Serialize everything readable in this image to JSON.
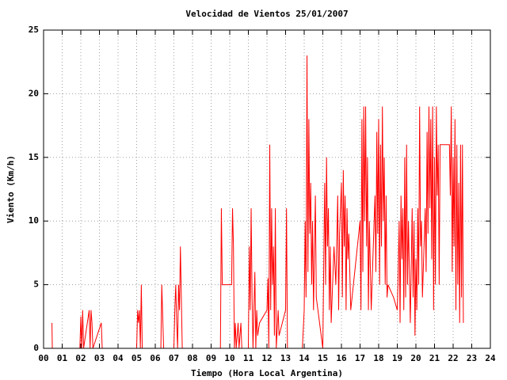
{
  "chart_data": {
    "type": "line",
    "title": "Velocidad de Vientos 25/01/2007",
    "xlabel": "Tiempo (Hora Local Argentina)",
    "ylabel": "Viento (Km/h)",
    "xlim": [
      0,
      24
    ],
    "ylim": [
      0,
      25
    ],
    "xticks": [
      {
        "value": 0,
        "label": "00"
      },
      {
        "value": 1,
        "label": "01"
      },
      {
        "value": 2,
        "label": "02"
      },
      {
        "value": 3,
        "label": "03"
      },
      {
        "value": 4,
        "label": "04"
      },
      {
        "value": 5,
        "label": "05"
      },
      {
        "value": 6,
        "label": "06"
      },
      {
        "value": 7,
        "label": "07"
      },
      {
        "value": 8,
        "label": "08"
      },
      {
        "value": 9,
        "label": "09"
      },
      10,
      11,
      12,
      13,
      14,
      15,
      16,
      17,
      18,
      19,
      20,
      21,
      22,
      23,
      24
    ],
    "yticks": [
      0,
      5,
      10,
      15,
      20,
      25
    ],
    "grid": true,
    "x": [
      0.45,
      0.47,
      1.95,
      2.0,
      2.05,
      2.1,
      2.15,
      2.45,
      2.5,
      2.55,
      2.6,
      2.65,
      3.1,
      3.15,
      5.0,
      5.05,
      5.1,
      5.15,
      5.2,
      5.25,
      5.3,
      6.3,
      6.35,
      6.4,
      6.45,
      7.0,
      7.05,
      7.1,
      7.15,
      7.2,
      7.25,
      7.3,
      7.35,
      7.4,
      7.45,
      9.5,
      9.55,
      9.6,
      10.1,
      10.15,
      10.2,
      10.25,
      10.3,
      10.35,
      10.45,
      10.5,
      10.6,
      10.65,
      11.0,
      11.05,
      11.1,
      11.15,
      11.2,
      11.25,
      11.35,
      11.4,
      11.45,
      11.5,
      11.6,
      12.0,
      12.05,
      12.1,
      12.15,
      12.2,
      12.25,
      12.3,
      12.35,
      12.4,
      12.45,
      12.5,
      12.6,
      12.65,
      13.0,
      13.05,
      13.1,
      13.9,
      14.0,
      14.05,
      14.1,
      14.15,
      14.2,
      14.25,
      14.3,
      14.35,
      14.4,
      14.45,
      14.5,
      14.6,
      14.65,
      15.0,
      15.1,
      15.15,
      15.2,
      15.25,
      15.3,
      15.35,
      15.4,
      15.45,
      15.6,
      15.7,
      15.8,
      15.85,
      15.9,
      16.0,
      16.05,
      16.1,
      16.15,
      16.2,
      16.25,
      16.3,
      16.35,
      16.4,
      16.5,
      17.0,
      17.05,
      17.1,
      17.15,
      17.2,
      17.25,
      17.3,
      17.35,
      17.4,
      17.45,
      17.5,
      17.6,
      17.8,
      17.85,
      17.9,
      17.95,
      18.0,
      18.05,
      18.1,
      18.15,
      18.2,
      18.25,
      18.3,
      18.35,
      18.4,
      18.45,
      18.5,
      18.8,
      19.0,
      19.05,
      19.1,
      19.15,
      19.2,
      19.25,
      19.3,
      19.35,
      19.4,
      19.45,
      19.5,
      19.55,
      19.6,
      19.7,
      19.8,
      19.85,
      19.9,
      19.95,
      20.0,
      20.05,
      20.1,
      20.15,
      20.2,
      20.25,
      20.3,
      20.35,
      20.5,
      20.55,
      20.6,
      20.65,
      20.7,
      20.75,
      20.8,
      20.85,
      20.9,
      20.95,
      21.0,
      21.05,
      21.1,
      21.15,
      21.2,
      21.25,
      21.3,
      21.8,
      21.85,
      21.9,
      21.95,
      22.0,
      22.05,
      22.1,
      22.15,
      22.2,
      22.25,
      22.3,
      22.35,
      22.4,
      22.45,
      22.5,
      22.55
    ],
    "series": [
      {
        "color": "#ff0000",
        "values": [
          2,
          0,
          0,
          2.5,
          0,
          3,
          0,
          3,
          0,
          3,
          2,
          0,
          2,
          0,
          0,
          3,
          2,
          3,
          0,
          5,
          0,
          0,
          5,
          2.5,
          0,
          0,
          3,
          5,
          2,
          0,
          5,
          3,
          8,
          4,
          0,
          0,
          11,
          5,
          5,
          11,
          8,
          0,
          2,
          0,
          2,
          0,
          2,
          0,
          0,
          8,
          3,
          11,
          4,
          0,
          6,
          0,
          3,
          1,
          2,
          3,
          5.5,
          0,
          16,
          3,
          11,
          5,
          8,
          1,
          11,
          0,
          3,
          1,
          3,
          11,
          0,
          0,
          3,
          10,
          4,
          23,
          6,
          18,
          9,
          13,
          5,
          10,
          3,
          12,
          4,
          0,
          13,
          5,
          15,
          8,
          11,
          3,
          8,
          2,
          8,
          5,
          12,
          3,
          9,
          13,
          4,
          14,
          8,
          12,
          3,
          11,
          7,
          9,
          3,
          10,
          3,
          18,
          6,
          19,
          10,
          19,
          8,
          15,
          3,
          10,
          3,
          12,
          6,
          17,
          9,
          18,
          5,
          16,
          8,
          19,
          10,
          15,
          5,
          12,
          4,
          5,
          4,
          3,
          6,
          10,
          2,
          12,
          7,
          11,
          3,
          15,
          4,
          16,
          5,
          10,
          2,
          11,
          4,
          10,
          1,
          7,
          3,
          11,
          5,
          19,
          8,
          10,
          4,
          11,
          6,
          17,
          9,
          19,
          11,
          18,
          7,
          19,
          3,
          15,
          5,
          19,
          12,
          16,
          5,
          16,
          16,
          12,
          19,
          6,
          15,
          8,
          18,
          3,
          16,
          5,
          13,
          2,
          16,
          4,
          16,
          2
        ]
      }
    ]
  }
}
